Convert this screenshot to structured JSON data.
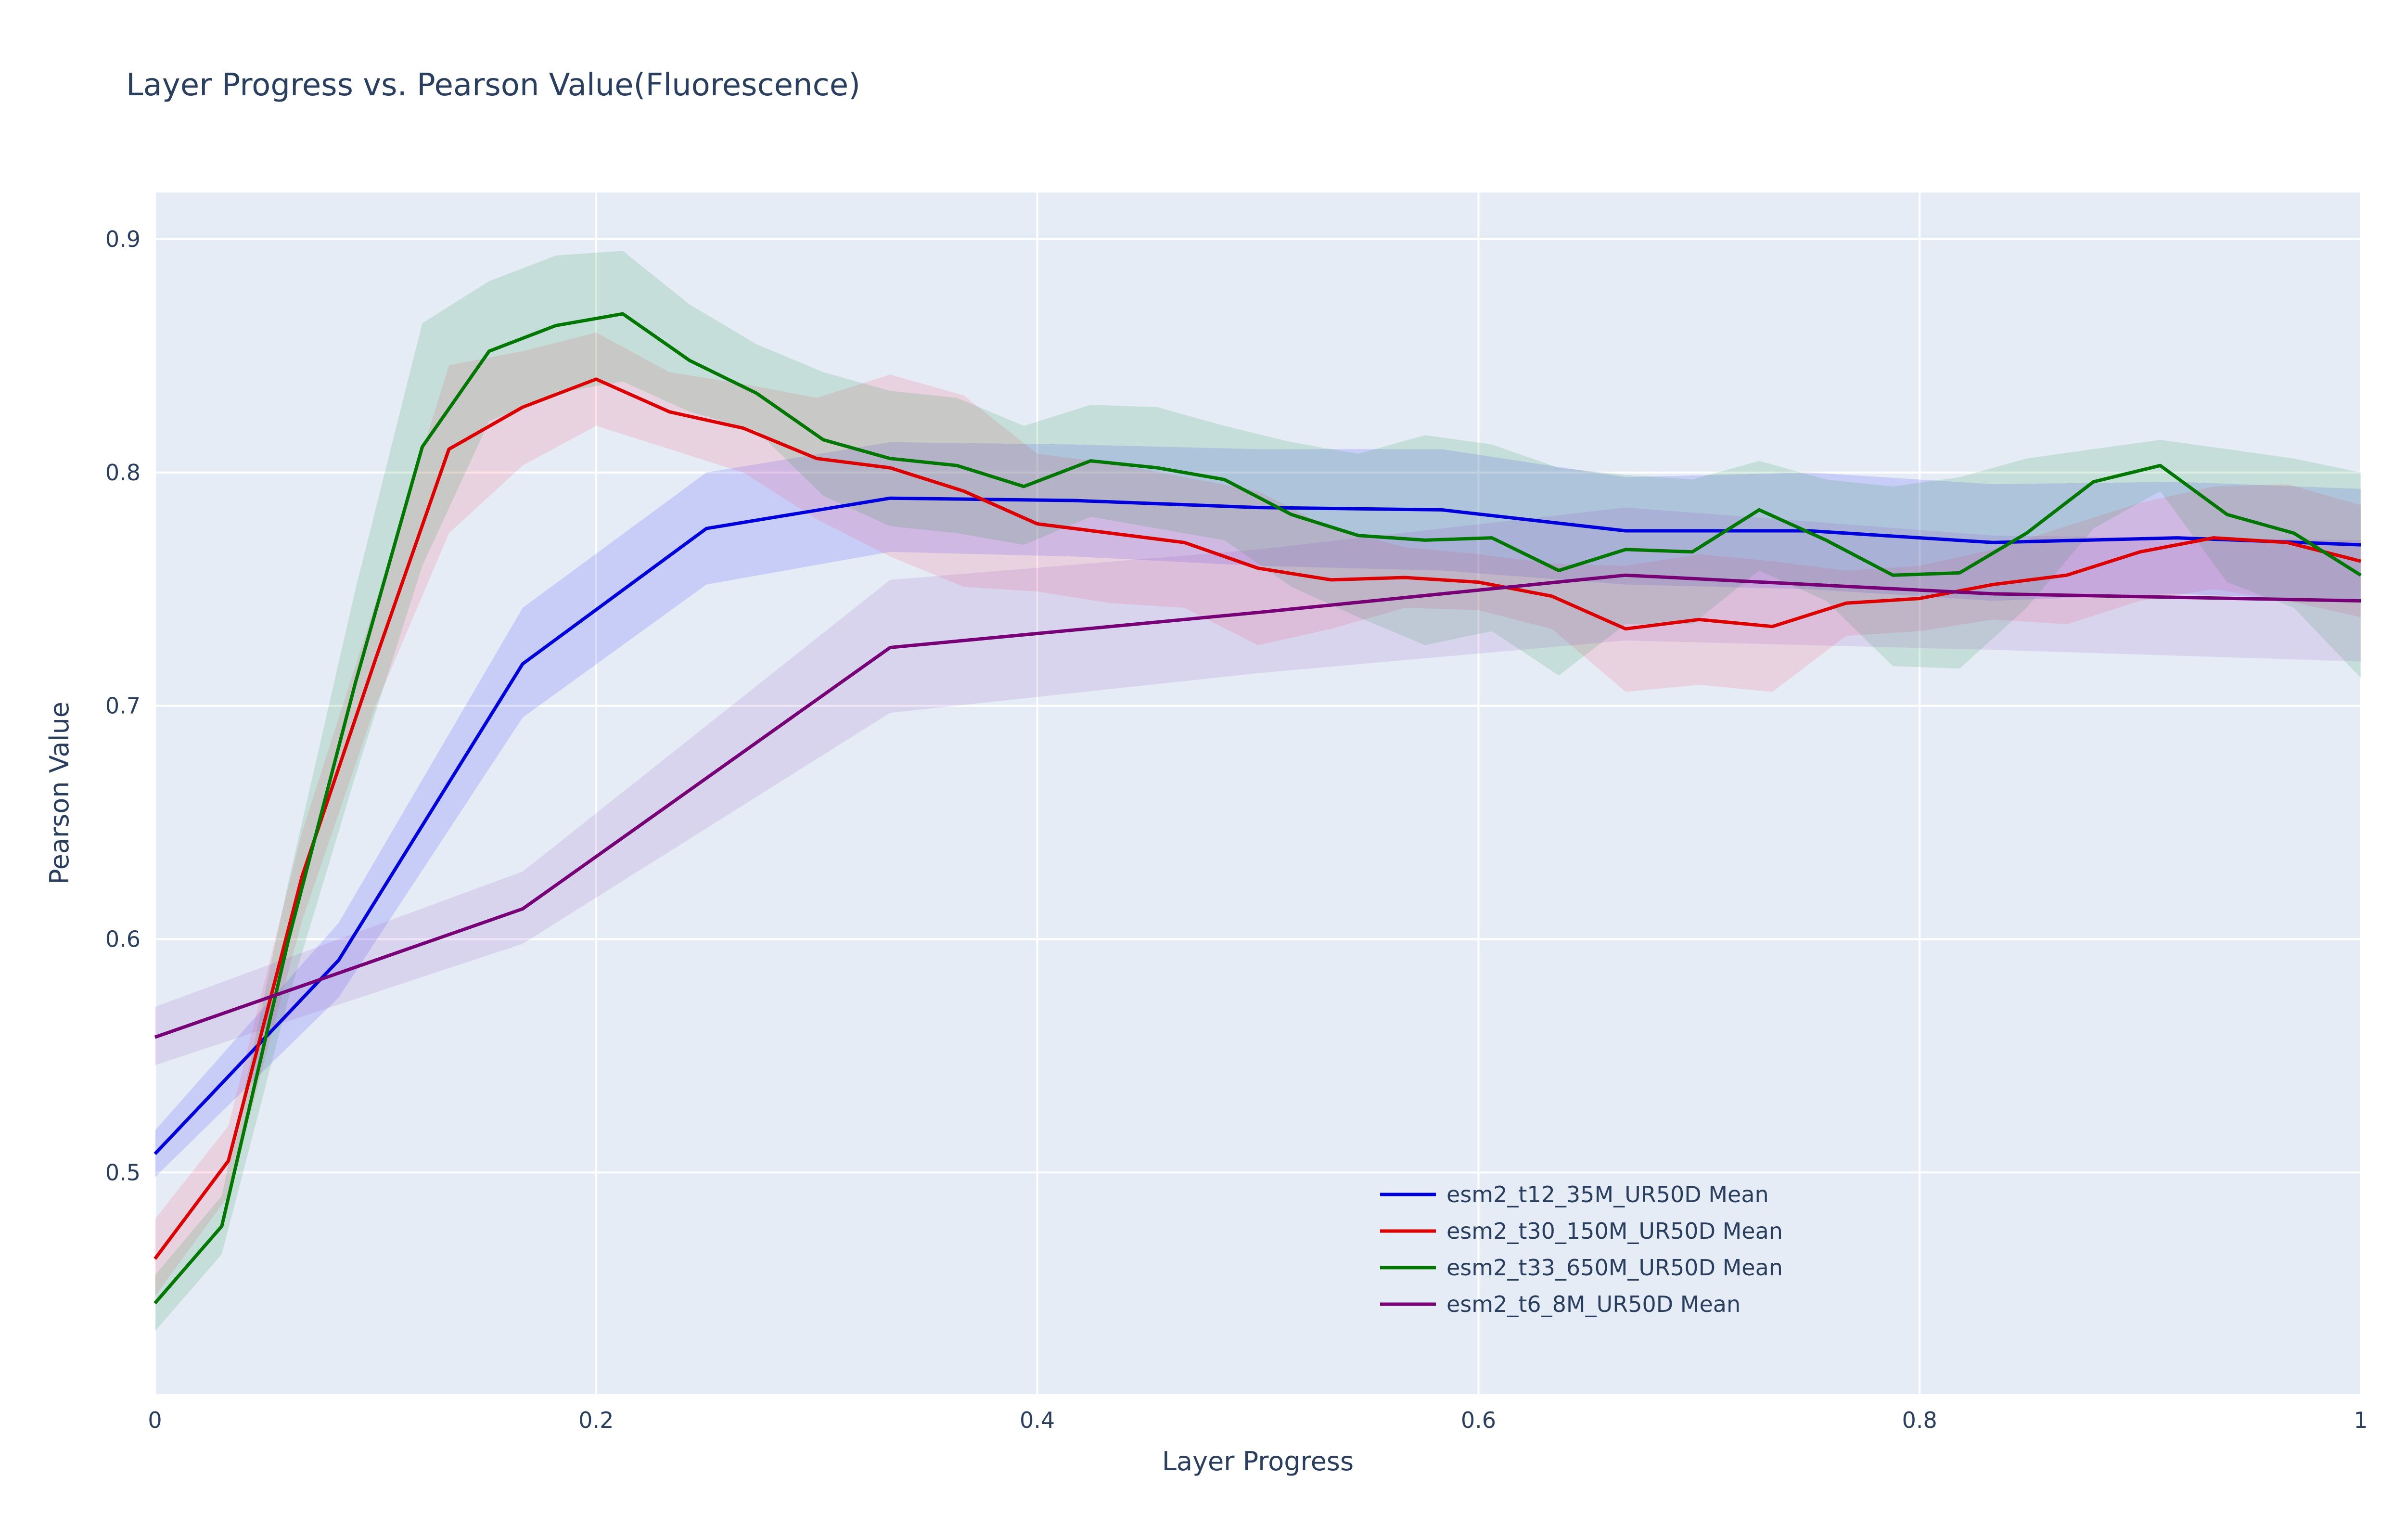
{
  "chart_data": {
    "type": "line",
    "title": "Layer Progress vs. Pearson Value(Fluorescence)",
    "xlabel": "Layer Progress",
    "ylabel": "Pearson Value",
    "xlim": [
      0,
      1
    ],
    "ylim": [
      0.405,
      0.92
    ],
    "xticks": [
      0,
      0.2,
      0.4,
      0.6,
      0.8,
      1
    ],
    "xtick_labels": [
      "0",
      "0.2",
      "0.4",
      "0.6",
      "0.8",
      "1"
    ],
    "yticks": [
      0.5,
      0.6,
      0.7,
      0.8,
      0.9
    ],
    "ytick_labels": [
      "0.5",
      "0.6",
      "0.7",
      "0.8",
      "0.9"
    ],
    "grid": true,
    "legend_position": "bottom-center",
    "background": "#e5ecf6",
    "series": [
      {
        "name": "esm2_t12_35M_UR50D Mean",
        "color": "#0000dd",
        "band_color": "rgba(0,0,255,0.13)",
        "x": [
          0,
          0.0833,
          0.1667,
          0.25,
          0.3333,
          0.4167,
          0.5,
          0.5833,
          0.6667,
          0.75,
          0.8333,
          0.9167,
          1.0
        ],
        "y": [
          0.508,
          0.591,
          0.718,
          0.776,
          0.789,
          0.788,
          0.785,
          0.784,
          0.775,
          0.775,
          0.77,
          0.772,
          0.769
        ],
        "lower": [
          0.498,
          0.575,
          0.695,
          0.752,
          0.766,
          0.764,
          0.76,
          0.758,
          0.752,
          0.75,
          0.745,
          0.748,
          0.745
        ],
        "upper": [
          0.518,
          0.607,
          0.742,
          0.8,
          0.813,
          0.812,
          0.81,
          0.81,
          0.798,
          0.8,
          0.795,
          0.796,
          0.793
        ]
      },
      {
        "name": "esm2_t30_150M_UR50D Mean",
        "color": "#dd0000",
        "band_color": "rgba(255,60,90,0.14)",
        "x": [
          0,
          0.0333,
          0.0667,
          0.1,
          0.1333,
          0.1667,
          0.2,
          0.2333,
          0.2667,
          0.3,
          0.3333,
          0.3667,
          0.4,
          0.4333,
          0.4667,
          0.5,
          0.5333,
          0.5667,
          0.6,
          0.6333,
          0.6667,
          0.7,
          0.7333,
          0.7667,
          0.8,
          0.8333,
          0.8667,
          0.9,
          0.9333,
          0.9667,
          1.0
        ],
        "y": [
          0.463,
          0.505,
          0.627,
          0.72,
          0.81,
          0.828,
          0.84,
          0.826,
          0.819,
          0.806,
          0.802,
          0.792,
          0.778,
          0.774,
          0.77,
          0.759,
          0.754,
          0.755,
          0.753,
          0.747,
          0.733,
          0.737,
          0.734,
          0.744,
          0.746,
          0.752,
          0.756,
          0.766,
          0.772,
          0.77,
          0.762
        ],
        "lower": [
          0.447,
          0.49,
          0.608,
          0.7,
          0.774,
          0.803,
          0.82,
          0.81,
          0.8,
          0.78,
          0.764,
          0.751,
          0.749,
          0.744,
          0.742,
          0.726,
          0.733,
          0.742,
          0.741,
          0.733,
          0.706,
          0.709,
          0.706,
          0.73,
          0.732,
          0.737,
          0.735,
          0.745,
          0.75,
          0.745,
          0.738
        ],
        "upper": [
          0.48,
          0.52,
          0.646,
          0.744,
          0.846,
          0.852,
          0.86,
          0.843,
          0.838,
          0.832,
          0.842,
          0.833,
          0.808,
          0.804,
          0.798,
          0.792,
          0.776,
          0.768,
          0.765,
          0.761,
          0.76,
          0.765,
          0.762,
          0.758,
          0.76,
          0.767,
          0.777,
          0.787,
          0.794,
          0.795,
          0.786
        ]
      },
      {
        "name": "esm2_t33_650M_UR50D Mean",
        "color": "#007700",
        "band_color": "rgba(40,150,70,0.16)",
        "x": [
          0,
          0.0303,
          0.0606,
          0.0909,
          0.1212,
          0.1515,
          0.1818,
          0.2121,
          0.2424,
          0.2727,
          0.303,
          0.3333,
          0.3636,
          0.3939,
          0.4242,
          0.4545,
          0.4848,
          0.5152,
          0.5455,
          0.5758,
          0.6061,
          0.6364,
          0.6667,
          0.697,
          0.7273,
          0.7576,
          0.7879,
          0.8182,
          0.8485,
          0.8788,
          0.9091,
          0.9394,
          0.9697,
          1.0
        ],
        "y": [
          0.444,
          0.477,
          0.6,
          0.71,
          0.811,
          0.852,
          0.863,
          0.868,
          0.848,
          0.834,
          0.814,
          0.806,
          0.803,
          0.794,
          0.805,
          0.802,
          0.797,
          0.782,
          0.773,
          0.771,
          0.772,
          0.758,
          0.767,
          0.766,
          0.784,
          0.771,
          0.756,
          0.757,
          0.774,
          0.796,
          0.803,
          0.782,
          0.774,
          0.756
        ],
        "lower": [
          0.432,
          0.465,
          0.575,
          0.67,
          0.76,
          0.822,
          0.834,
          0.839,
          0.826,
          0.818,
          0.79,
          0.777,
          0.774,
          0.769,
          0.781,
          0.776,
          0.771,
          0.751,
          0.738,
          0.726,
          0.732,
          0.713,
          0.735,
          0.735,
          0.758,
          0.745,
          0.717,
          0.716,
          0.742,
          0.776,
          0.792,
          0.753,
          0.742,
          0.712
        ],
        "upper": [
          0.456,
          0.49,
          0.625,
          0.75,
          0.864,
          0.882,
          0.893,
          0.895,
          0.872,
          0.855,
          0.843,
          0.835,
          0.832,
          0.82,
          0.829,
          0.828,
          0.82,
          0.813,
          0.808,
          0.816,
          0.812,
          0.802,
          0.799,
          0.797,
          0.805,
          0.797,
          0.794,
          0.798,
          0.806,
          0.81,
          0.814,
          0.81,
          0.806,
          0.8
        ]
      },
      {
        "name": "esm2_t6_8M_UR50D Mean",
        "color": "#770077",
        "band_color": "rgba(150,70,190,0.14)",
        "x": [
          0,
          0.1667,
          0.3333,
          0.5,
          0.6667,
          0.8333,
          1.0
        ],
        "y": [
          0.558,
          0.613,
          0.725,
          0.74,
          0.756,
          0.748,
          0.745
        ],
        "lower": [
          0.546,
          0.598,
          0.697,
          0.714,
          0.728,
          0.724,
          0.719
        ],
        "upper": [
          0.571,
          0.629,
          0.754,
          0.767,
          0.785,
          0.773,
          0.771
        ]
      }
    ]
  }
}
